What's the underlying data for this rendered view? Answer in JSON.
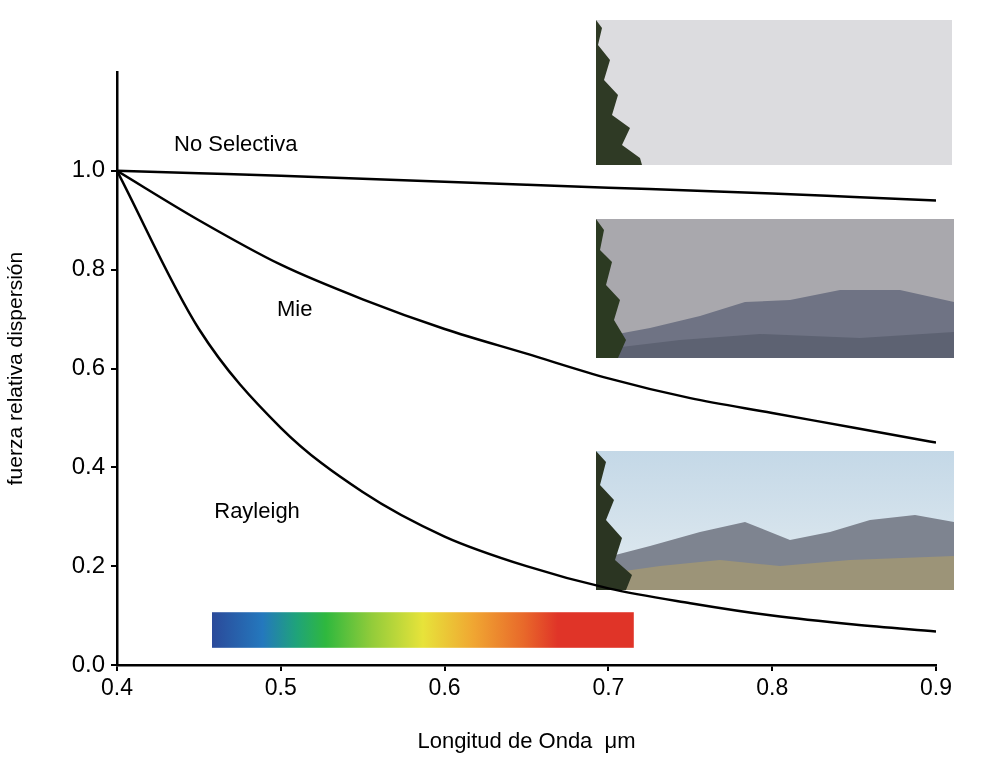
{
  "chart_data": {
    "type": "line",
    "x_label": "Longitud de Onda  μm",
    "y_label": "fuerza relativa dispersión",
    "x": [
      0.4,
      0.45,
      0.5,
      0.55,
      0.6,
      0.65,
      0.7,
      0.75,
      0.8,
      0.85,
      0.9
    ],
    "series": [
      {
        "name": "No Selectiva",
        "color": "#000000",
        "values": [
          1.0,
          0.995,
          0.99,
          0.984,
          0.978,
          0.972,
          0.966,
          0.96,
          0.954,
          0.947,
          0.94
        ]
      },
      {
        "name": "Mie",
        "color": "#000000",
        "values": [
          1.0,
          0.9,
          0.81,
          0.74,
          0.68,
          0.63,
          0.58,
          0.54,
          0.51,
          0.48,
          0.45
        ]
      },
      {
        "name": "Rayleigh",
        "color": "#000000",
        "values": [
          1.0,
          0.68,
          0.48,
          0.35,
          0.26,
          0.2,
          0.155,
          0.125,
          0.1,
          0.082,
          0.068
        ]
      }
    ],
    "xlim": [
      0.4,
      0.9
    ],
    "xticks": [
      0.4,
      0.5,
      0.6,
      0.7,
      0.8,
      0.9
    ],
    "ylim": [
      0,
      1.2
    ],
    "yticks": [
      {
        "value": 0,
        "label": "0.0"
      },
      0.2,
      0.4,
      0.6,
      0.8,
      {
        "value": 1,
        "label": "1.0"
      }
    ],
    "grid": false
  }
}
